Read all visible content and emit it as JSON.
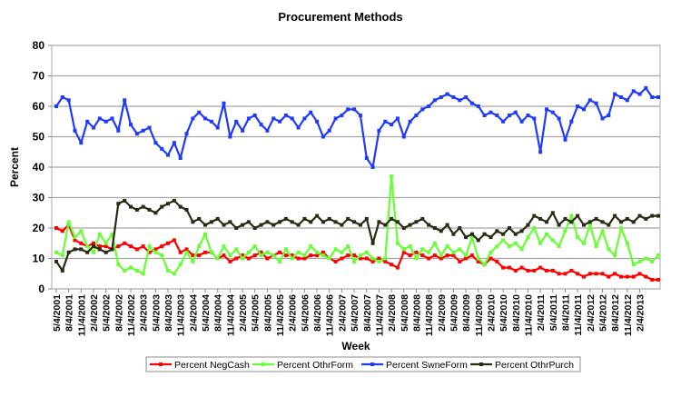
{
  "chart_data": {
    "type": "line",
    "title": "Procurement Methods",
    "xlabel": "Week",
    "ylabel": "Percent",
    "ylim": [
      0,
      80
    ],
    "yticks": [
      0,
      10,
      20,
      30,
      40,
      50,
      60,
      70,
      80
    ],
    "grid": true,
    "legend_position": "bottom",
    "x_tick_labels": [
      "5/4/2001",
      "8/4/2001",
      "11/4/2001",
      "2/4/2002",
      "5/4/2002",
      "8/4/2002",
      "11/4/2002",
      "2/4/2003",
      "5/4/2003",
      "8/4/2003",
      "11/4/2003",
      "2/4/2004",
      "5/4/2004",
      "8/4/2004",
      "11/4/2004",
      "2/4/2005",
      "5/4/2005",
      "8/4/2005",
      "11/4/2005",
      "2/4/2006",
      "5/4/2006",
      "8/4/2006",
      "11/4/2006",
      "2/4/2007",
      "5/4/2007",
      "8/4/2007",
      "11/4/2007",
      "2/4/2008",
      "5/4/2008",
      "8/4/2008",
      "11/4/2008",
      "2/4/2009",
      "5/4/2009",
      "8/4/2009",
      "11/4/2009",
      "2/4/2010",
      "5/4/2010",
      "8/4/2010",
      "11/4/2010",
      "2/4/2011",
      "5/4/2011",
      "8/4/2011",
      "11/4/2011",
      "2/4/2012",
      "5/4/2012",
      "8/4/2012",
      "11/4/2012",
      "2/4/2013"
    ],
    "x_points_per_tick": 2,
    "series": [
      {
        "name": "Percent NegCash",
        "color": "#ff0000",
        "values": [
          20,
          19,
          21,
          16,
          15,
          14,
          15,
          14,
          14,
          13,
          14,
          15,
          14,
          13,
          14,
          12,
          13,
          14,
          15,
          16,
          12,
          13,
          11,
          11,
          12,
          12,
          10,
          11,
          9,
          10,
          11,
          10,
          11,
          12,
          10,
          11,
          12,
          11,
          11,
          10,
          10,
          11,
          11,
          12,
          10,
          9,
          10,
          11,
          11,
          10,
          10,
          9,
          10,
          9,
          8,
          7,
          12,
          11,
          12,
          11,
          10,
          11,
          10,
          11,
          11,
          9,
          10,
          11,
          9,
          8,
          10,
          9,
          7,
          7,
          6,
          7,
          6,
          6,
          7,
          6,
          6,
          5,
          5,
          6,
          5,
          4,
          5,
          5,
          5,
          4,
          5,
          4,
          4,
          4,
          5,
          4,
          3,
          3
        ]
      },
      {
        "name": "Percent OthrForm",
        "color": "#66ff33",
        "values": [
          12,
          11,
          22,
          17,
          19,
          14,
          12,
          18,
          15,
          18,
          8,
          6,
          7,
          6,
          5,
          14,
          12,
          11,
          6,
          5,
          8,
          12,
          9,
          14,
          18,
          12,
          10,
          14,
          11,
          13,
          10,
          12,
          14,
          11,
          12,
          11,
          9,
          13,
          10,
          12,
          11,
          14,
          12,
          11,
          10,
          13,
          12,
          14,
          9,
          11,
          12,
          10,
          9,
          10,
          37,
          15,
          13,
          14,
          10,
          13,
          12,
          15,
          11,
          14,
          12,
          13,
          11,
          17,
          10,
          8,
          12,
          14,
          16,
          14,
          15,
          13,
          17,
          20,
          15,
          18,
          16,
          14,
          19,
          24,
          17,
          15,
          21,
          14,
          19,
          13,
          11,
          20,
          15,
          8,
          9,
          10,
          9,
          11
        ]
      },
      {
        "name": "Percent SwneForm",
        "color": "#1f3aff",
        "values": [
          60,
          63,
          62,
          52,
          48,
          55,
          53,
          56,
          55,
          56,
          52,
          62,
          54,
          51,
          52,
          53,
          48,
          46,
          44,
          48,
          43,
          51,
          56,
          58,
          56,
          55,
          53,
          61,
          50,
          55,
          52,
          56,
          57,
          54,
          52,
          56,
          55,
          57,
          56,
          53,
          56,
          58,
          55,
          50,
          52,
          56,
          57,
          59,
          59,
          57,
          43,
          40,
          52,
          55,
          54,
          56,
          50,
          55,
          57,
          59,
          60,
          62,
          63,
          64,
          63,
          62,
          63,
          61,
          60,
          57,
          58,
          57,
          55,
          57,
          58,
          55,
          57,
          56,
          45,
          59,
          58,
          56,
          49,
          55,
          60,
          59,
          62,
          61,
          56,
          57,
          64,
          63,
          62,
          65,
          64,
          66,
          63,
          63
        ]
      },
      {
        "name": "Percent OthrPurch",
        "color": "#2b2a14",
        "values": [
          9,
          6,
          12,
          13,
          13,
          12,
          14,
          13,
          12,
          13,
          28,
          29,
          27,
          26,
          27,
          26,
          25,
          27,
          28,
          29,
          27,
          26,
          22,
          23,
          21,
          22,
          23,
          21,
          22,
          20,
          21,
          22,
          20,
          21,
          22,
          21,
          22,
          23,
          22,
          21,
          23,
          22,
          24,
          22,
          23,
          22,
          21,
          23,
          22,
          21,
          23,
          15,
          22,
          21,
          23,
          22,
          20,
          21,
          22,
          23,
          21,
          20,
          19,
          21,
          18,
          20,
          17,
          18,
          16,
          18,
          17,
          19,
          18,
          20,
          18,
          19,
          21,
          24,
          23,
          22,
          25,
          21,
          23,
          22,
          24,
          21,
          22,
          23,
          22,
          21,
          24,
          22,
          23,
          22,
          24,
          23,
          24,
          24
        ]
      }
    ]
  }
}
